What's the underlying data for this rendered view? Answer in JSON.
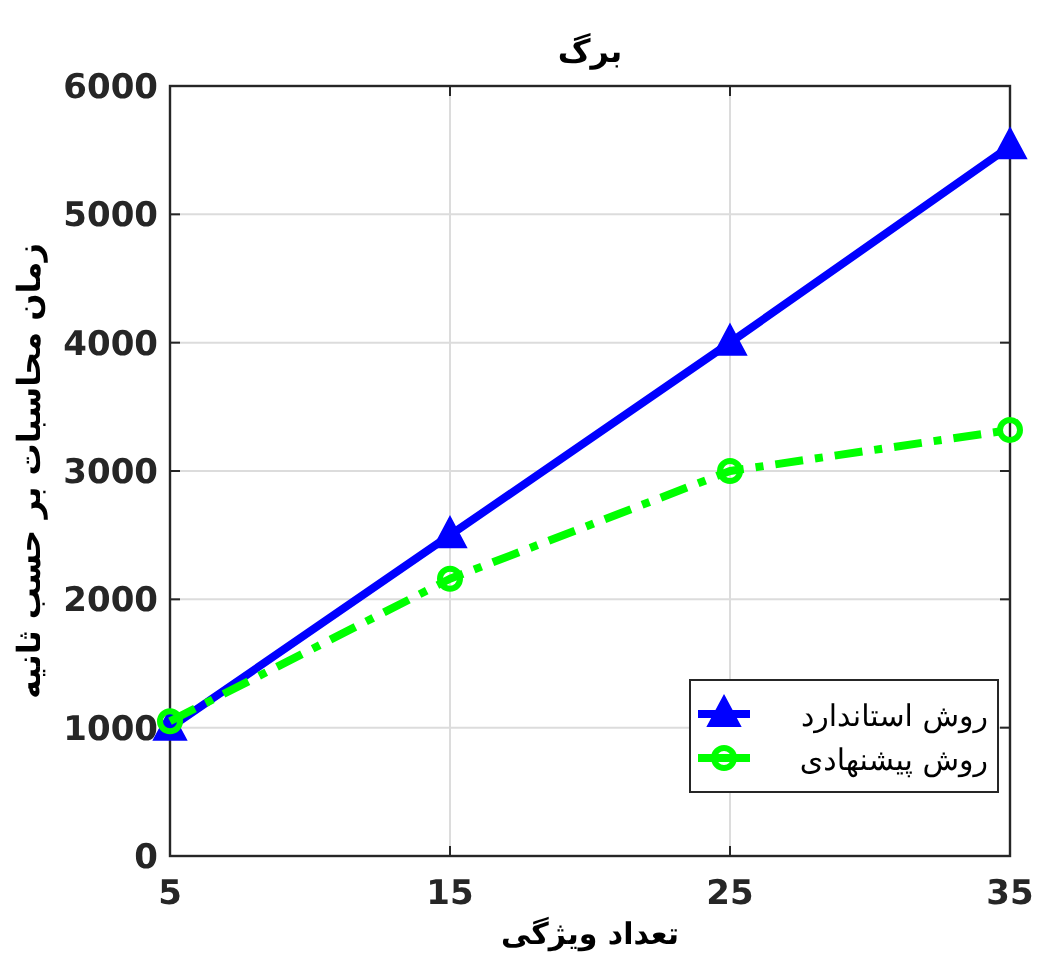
{
  "chart_data": {
    "type": "line",
    "title": "برگ",
    "xlabel": "تعداد ویژگی",
    "ylabel": "زمان محاسبات بر حسب ثانیه",
    "x": [
      5,
      15,
      25,
      35
    ],
    "series": [
      {
        "name": "روش استاندارد",
        "color": "#0000ff",
        "values": [
          1000,
          2500,
          4000,
          5530
        ],
        "marker": "triangle",
        "line_style": "solid"
      },
      {
        "name": "روش پیشنهادی",
        "color": "#00ff00",
        "values": [
          1050,
          2160,
          3000,
          3320
        ],
        "marker": "circle",
        "line_style": "dashdot"
      }
    ],
    "xlim": [
      5,
      35
    ],
    "xticks": [
      5,
      15,
      25,
      35
    ],
    "ylim": [
      0,
      6000
    ],
    "yticks": [
      0,
      1000,
      2000,
      3000,
      4000,
      5000,
      6000
    ],
    "grid": true,
    "legend": "bottom right"
  }
}
